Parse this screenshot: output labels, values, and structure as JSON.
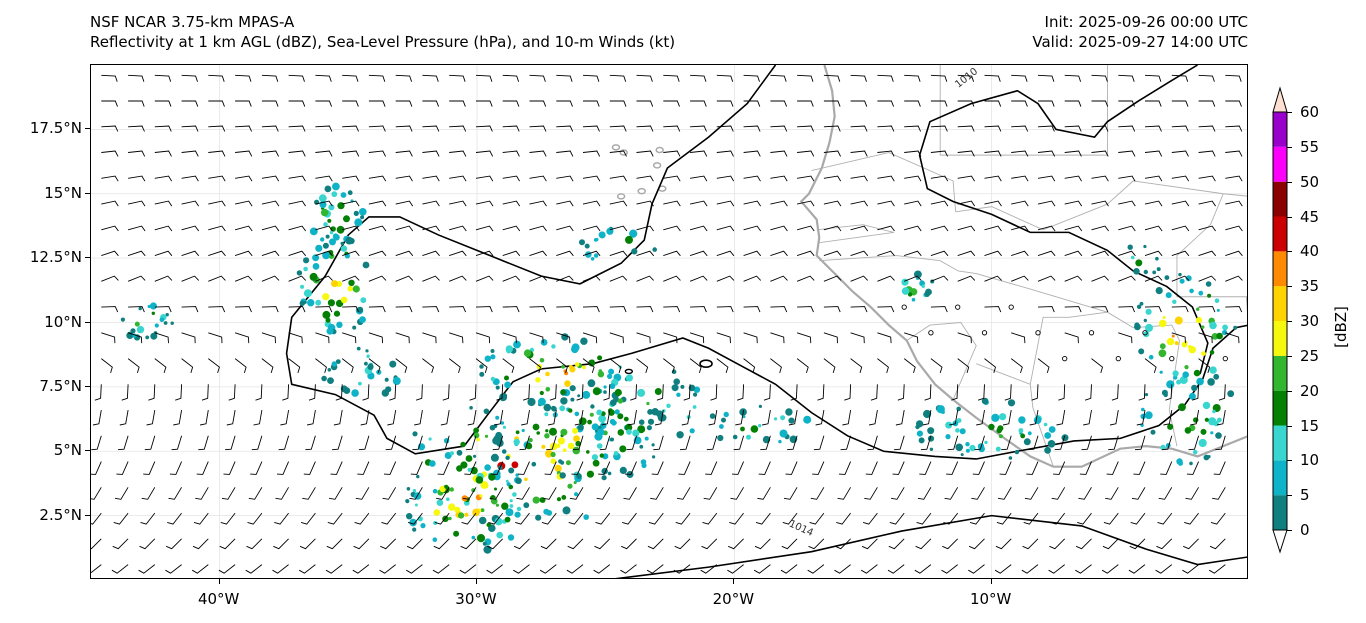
{
  "header": {
    "left_line1": "NSF NCAR 3.75-km MPAS-A",
    "left_line2": "Reflectivity at 1 km AGL (dBZ), Sea-Level Pressure (hPa), and 10-m Winds (kt)",
    "right_line1": "Init: 2025-09-26 00:00 UTC",
    "right_line2": "Valid: 2025-09-27 14:00 UTC"
  },
  "map": {
    "lon_range": [
      -45,
      0
    ],
    "lat_range": [
      0,
      20
    ],
    "lat_ticks": [
      {
        "value": 17.5,
        "label": "17.5°N"
      },
      {
        "value": 15,
        "label": "15°N"
      },
      {
        "value": 12.5,
        "label": "12.5°N"
      },
      {
        "value": 10,
        "label": "10°N"
      },
      {
        "value": 7.5,
        "label": "7.5°N"
      },
      {
        "value": 5,
        "label": "5°N"
      },
      {
        "value": 2.5,
        "label": "2.5°N"
      }
    ],
    "lon_ticks": [
      {
        "value": -40,
        "label": "40°W"
      },
      {
        "value": -30,
        "label": "30°W"
      },
      {
        "value": -20,
        "label": "20°W"
      },
      {
        "value": -10,
        "label": "10°W"
      }
    ],
    "isobar_labels": [
      "1010",
      "1014"
    ],
    "colors": {
      "coastline": "#a9a9a9",
      "border": "#b0b0b0",
      "isobar": "#000000",
      "gridline": "#e4e4e4",
      "barb": "#000000"
    }
  },
  "colorbar": {
    "label": "[dBZ]",
    "ticks": [
      "0",
      "5",
      "10",
      "15",
      "20",
      "25",
      "30",
      "35",
      "40",
      "45",
      "50",
      "55",
      "60"
    ],
    "bins": [
      {
        "from": 0,
        "to": 5,
        "color": "#0f7f80"
      },
      {
        "from": 5,
        "to": 10,
        "color": "#0fb3c7"
      },
      {
        "from": 10,
        "to": 15,
        "color": "#38d6cf"
      },
      {
        "from": 15,
        "to": 20,
        "color": "#048004"
      },
      {
        "from": 20,
        "to": 25,
        "color": "#32b52f"
      },
      {
        "from": 25,
        "to": 30,
        "color": "#f6f80d"
      },
      {
        "from": 30,
        "to": 35,
        "color": "#fdd400"
      },
      {
        "from": 35,
        "to": 40,
        "color": "#fd8a00"
      },
      {
        "from": 40,
        "to": 45,
        "color": "#cc0000"
      },
      {
        "from": 45,
        "to": 50,
        "color": "#8b0000"
      },
      {
        "from": 50,
        "to": 55,
        "color": "#fb00fb"
      },
      {
        "from": 55,
        "to": 60,
        "color": "#9900cc"
      }
    ],
    "under_color": "#ffffff",
    "over_color": "#fde0d2"
  }
}
